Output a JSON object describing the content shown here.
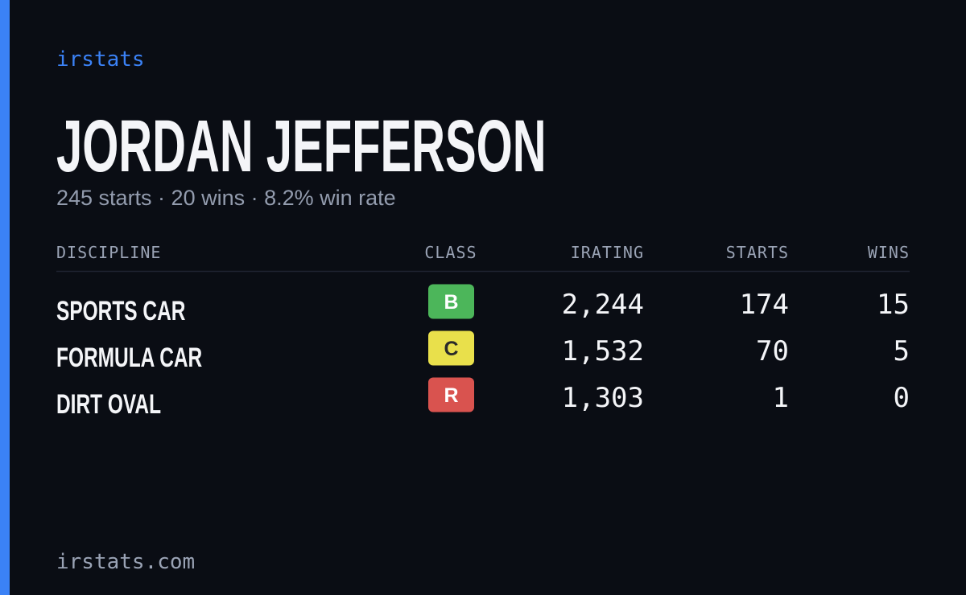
{
  "brand": "irstats",
  "driver": {
    "name": "JORDAN JEFFERSON",
    "summary": "245 starts · 20 wins · 8.2% win rate"
  },
  "table": {
    "headers": [
      "DISCIPLINE",
      "CLASS",
      "IRATING",
      "STARTS",
      "WINS"
    ],
    "rows": [
      [
        "SPORTS CAR",
        "B",
        "2,244",
        "174",
        "15"
      ],
      [
        "FORMULA CAR",
        "C",
        "1,532",
        "70",
        "5"
      ],
      [
        "DIRT OVAL",
        "R",
        "1,303",
        "1",
        "0"
      ]
    ],
    "class_colors": [
      {
        "fill": "#4cb65a",
        "text": "#ffffff"
      },
      {
        "fill": "#e9e04b",
        "text": "#2a2a2a"
      },
      {
        "fill": "#d9534f",
        "text": "#ffffff"
      }
    ]
  },
  "footer": "irstats.com"
}
